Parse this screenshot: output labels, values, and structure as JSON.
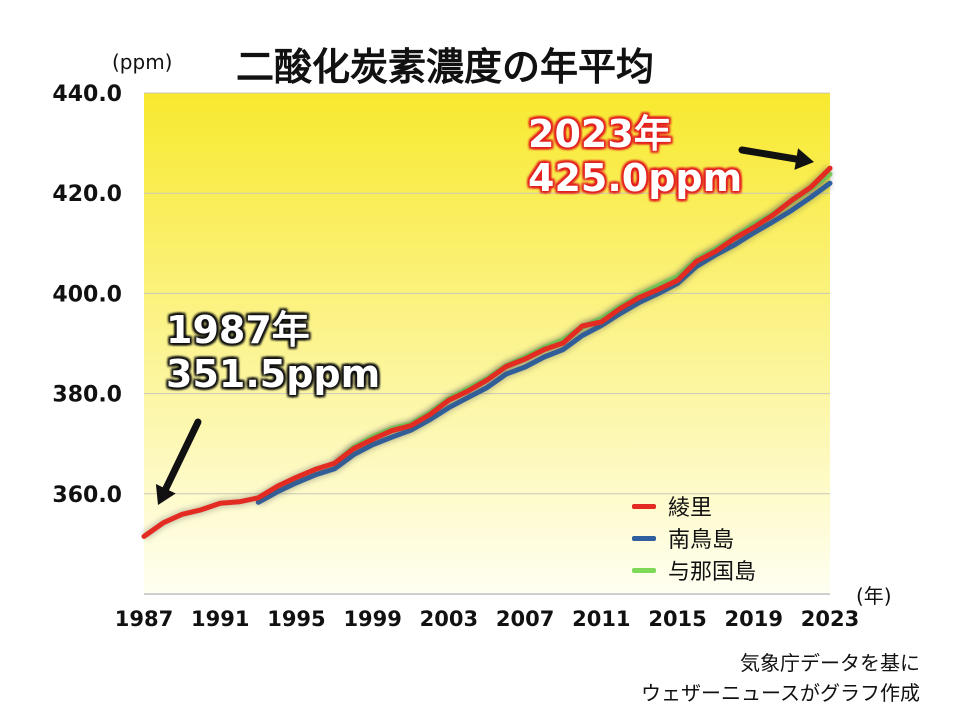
{
  "page": {
    "title": "二酸化炭素濃度の年平均",
    "y_unit": "(ppm)",
    "x_unit": "(年)",
    "source_line1": "気象庁データを基に",
    "source_line2": "ウェザーニュースがグラフ作成"
  },
  "callouts": {
    "start_year": "1987年",
    "start_value": "351.5ppm",
    "end_year": "2023年",
    "end_value": "425.0ppm"
  },
  "colors": {
    "ryori": "#e32b22",
    "minamitorishima": "#2f5f9e",
    "yonaguni": "#7ed957",
    "plot_bg_top": "#f8e92e",
    "plot_bg_bottom": "#fffff2",
    "arrow": "#111111"
  },
  "chart_data": {
    "type": "line",
    "title": "二酸化炭素濃度の年平均",
    "ylabel": "(ppm)",
    "xlabel": "(年)",
    "ylim": [
      340,
      440
    ],
    "xlim": [
      1987,
      2023
    ],
    "yticks": [
      "440.0",
      "420.0",
      "400.0",
      "380.0",
      "360.0"
    ],
    "ytick_values": [
      440,
      420,
      400,
      380,
      360
    ],
    "xticks": [
      "1987",
      "1991",
      "1995",
      "1999",
      "2003",
      "2007",
      "2011",
      "2015",
      "2019",
      "2023"
    ],
    "xtick_values": [
      1987,
      1991,
      1995,
      1999,
      2003,
      2007,
      2011,
      2015,
      2019,
      2023
    ],
    "grid": true,
    "legend_position": "bottom-right",
    "series": [
      {
        "name": "綾里",
        "color_key": "ryori",
        "x": [
          1987,
          1988,
          1989,
          1990,
          1991,
          1992,
          1993,
          1994,
          1995,
          1996,
          1997,
          1998,
          1999,
          2000,
          2001,
          2002,
          2003,
          2004,
          2005,
          2006,
          2007,
          2008,
          2009,
          2010,
          2011,
          2012,
          2013,
          2014,
          2015,
          2016,
          2017,
          2018,
          2019,
          2020,
          2021,
          2022,
          2023
        ],
        "values": [
          351.5,
          354.2,
          355.9,
          356.8,
          358.1,
          358.4,
          359.2,
          361.5,
          363.3,
          364.9,
          366.1,
          369.0,
          370.9,
          372.6,
          373.6,
          375.8,
          378.7,
          380.5,
          382.7,
          385.4,
          386.9,
          388.8,
          390.1,
          393.5,
          394.3,
          397.0,
          399.2,
          400.8,
          402.6,
          406.4,
          408.4,
          411.0,
          413.2,
          415.6,
          418.6,
          421.2,
          425.0
        ]
      },
      {
        "name": "南鳥島",
        "color_key": "minamitorishima",
        "x": [
          1993,
          1994,
          1995,
          1996,
          1997,
          1998,
          1999,
          2000,
          2001,
          2002,
          2003,
          2004,
          2005,
          2006,
          2007,
          2008,
          2009,
          2010,
          2011,
          2012,
          2013,
          2014,
          2015,
          2016,
          2017,
          2018,
          2019,
          2020,
          2021,
          2022,
          2023
        ],
        "values": [
          358.3,
          360.4,
          362.2,
          363.8,
          365.0,
          367.8,
          369.8,
          371.3,
          372.7,
          374.8,
          377.2,
          379.2,
          381.2,
          383.9,
          385.3,
          387.3,
          388.8,
          391.6,
          393.6,
          396.0,
          398.2,
          400.0,
          402.0,
          405.4,
          407.7,
          409.7,
          412.1,
          414.3,
          416.6,
          419.2,
          422.0
        ]
      },
      {
        "name": "与那国島",
        "color_key": "yonaguni",
        "x": [
          1997,
          1998,
          1999,
          2000,
          2001,
          2002,
          2003,
          2004,
          2005,
          2006,
          2007,
          2008,
          2009,
          2010,
          2011,
          2012,
          2013,
          2014,
          2015,
          2016,
          2017,
          2018,
          2019,
          2020,
          2021,
          2022,
          2023
        ],
        "values": [
          366.0,
          369.3,
          371.4,
          373.0,
          374.0,
          376.2,
          379.0,
          381.0,
          383.0,
          385.6,
          387.3,
          389.2,
          390.8,
          393.3,
          395.0,
          397.4,
          399.7,
          401.6,
          403.4,
          406.8,
          408.9,
          411.3,
          413.8,
          415.8,
          418.5,
          421.0,
          423.8
        ]
      }
    ]
  }
}
